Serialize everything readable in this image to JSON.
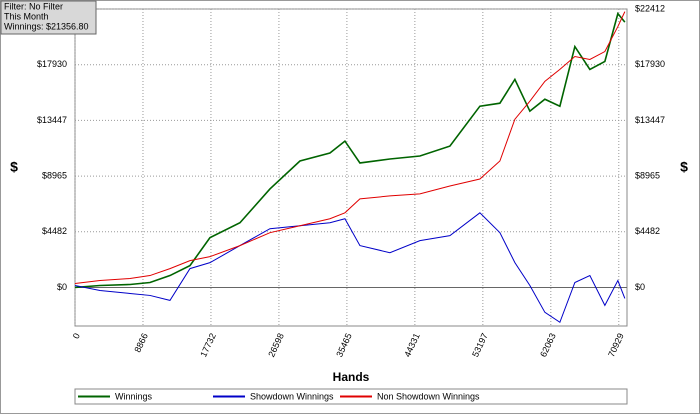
{
  "chart_data": {
    "type": "line",
    "info": [
      "Filter: No Filter",
      "This Month",
      "Winnings: $21356.80"
    ],
    "x_label": "Hands",
    "y_label": "$",
    "x": [
      0,
      3260,
      7172,
      9780,
      12388,
      14996,
      17604,
      21516,
      25428,
      29340,
      33252,
      35208,
      37164,
      41076,
      44988,
      48900,
      52812,
      55420,
      57376,
      59332,
      61288,
      63244,
      65200,
      67156,
      69112,
      70807,
      71720
    ],
    "series": [
      {
        "name": "Winnings",
        "color": "#006400",
        "values": [
          0,
          160,
          240,
          400,
          960,
          1760,
          4010,
          5210,
          7930,
          10180,
          10820,
          11780,
          10020,
          10340,
          10580,
          11380,
          14590,
          14830,
          16750,
          14190,
          15150,
          14590,
          19390,
          17550,
          18190,
          22040,
          21357
        ]
      },
      {
        "name": "Showdown Winnings",
        "color": "#0000c8",
        "values": [
          160,
          -240,
          -480,
          -640,
          -1040,
          1520,
          2000,
          3370,
          4730,
          4970,
          5210,
          5530,
          3370,
          2800,
          3770,
          4170,
          6010,
          4410,
          2000,
          160,
          -2000,
          -2800,
          400,
          960,
          -1440,
          560,
          -880
        ]
      },
      {
        "name": "Non Showdown Winnings",
        "color": "#e00000",
        "values": [
          320,
          560,
          720,
          960,
          1520,
          2160,
          2480,
          3370,
          4410,
          4970,
          5530,
          6010,
          7130,
          7370,
          7530,
          8170,
          8730,
          10180,
          13540,
          14990,
          16590,
          17550,
          18590,
          18350,
          18990,
          21000,
          22200
        ]
      }
    ],
    "xlim": [
      0,
      72000
    ],
    "xticks": [
      0,
      8866,
      17732,
      26598,
      35465,
      44331,
      53197,
      62063,
      70929
    ],
    "ylim": [
      -3100,
      22412
    ],
    "yticks": [
      {
        "value": 0,
        "label": "$0"
      },
      {
        "value": 4482,
        "label": "$4482"
      },
      {
        "value": 8965,
        "label": "$8965"
      },
      {
        "value": 13447,
        "label": "$13447"
      },
      {
        "value": 17930,
        "label": "$17930"
      },
      {
        "value": 22412,
        "label": "$22412"
      }
    ],
    "grid": true
  }
}
